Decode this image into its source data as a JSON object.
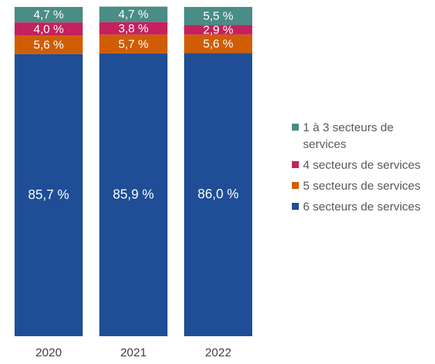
{
  "chart_data": {
    "type": "bar",
    "stacked": true,
    "normalized_percent": true,
    "categories": [
      "2020",
      "2021",
      "2022"
    ],
    "series": [
      {
        "name": "6 secteurs de services",
        "color": "#1f4e96",
        "values": [
          85.7,
          85.9,
          86.0
        ],
        "labels": [
          "85,7 %",
          "85,9 %",
          "86,0 %"
        ]
      },
      {
        "name": "5 secteurs de services",
        "color": "#d05d04",
        "values": [
          5.6,
          5.7,
          5.6
        ],
        "labels": [
          "5,6 %",
          "5,7 %",
          "5,6 %"
        ]
      },
      {
        "name": "4 secteurs de services",
        "color": "#c4215d",
        "values": [
          4.0,
          3.8,
          2.9
        ],
        "labels": [
          "4,0 %",
          "3,8 %",
          "2,9 %"
        ]
      },
      {
        "name": "1 à 3 secteurs de services",
        "color": "#4a8c86",
        "values": [
          4.7,
          4.7,
          5.5
        ],
        "labels": [
          "4,7 %",
          "4,7 %",
          "5,5 %"
        ]
      }
    ],
    "legend": {
      "position": "right",
      "items": [
        {
          "label": "1 à 3 secteurs de services",
          "color": "#4a8c86"
        },
        {
          "label": "4 secteurs de services",
          "color": "#c4215d"
        },
        {
          "label": "5 secteurs de services",
          "color": "#d05d04"
        },
        {
          "label": "6 secteurs de services",
          "color": "#1f4e96"
        }
      ]
    },
    "title": "",
    "xlabel": "",
    "ylabel": "",
    "ylim": [
      0,
      100
    ],
    "grid": false
  }
}
